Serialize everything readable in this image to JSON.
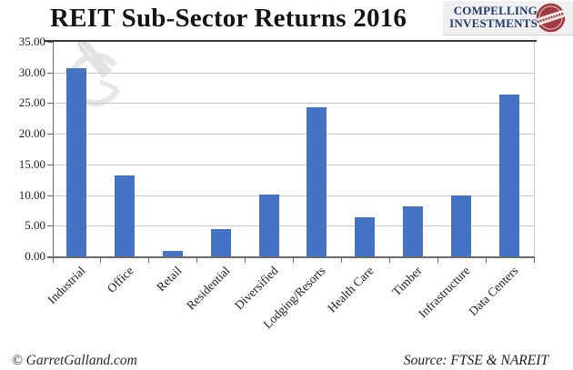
{
  "title": "REIT Sub-Sector Returns 2016",
  "logo": {
    "line1": "COMPELLING",
    "line2": "INVESTMENTS",
    "text_color": "#1e3a6e",
    "seal_color": "#a23b41"
  },
  "footer": {
    "left": "© GarretGalland.com",
    "right": "Source: FTSE & NAREIT"
  },
  "colors": {
    "bar": "#4472C4",
    "gridline": "#c9c9c9",
    "axis": "#6b6b6b",
    "top_rule": "#3a3a3a",
    "watermark": "#e5e5e5",
    "background": "#ffffff"
  },
  "chart_data": {
    "type": "bar",
    "title": "REIT Sub-Sector Returns 2016",
    "categories": [
      "Industrial",
      "Office",
      "Retail",
      "Residential",
      "Diversified",
      "Lodging/Resorts",
      "Health Care",
      "Timber",
      "Infrastructure",
      "Data Centers"
    ],
    "values": [
      30.72,
      13.17,
      0.95,
      4.48,
      10.15,
      24.34,
      6.38,
      8.22,
      9.94,
      26.41
    ],
    "xlabel": "",
    "ylabel": "",
    "ylim": [
      0,
      35
    ],
    "ytick_step": 5,
    "ytick_labels": [
      "0.00",
      "5.00",
      "10.00",
      "15.00",
      "20.00",
      "25.00",
      "30.00",
      "35.00"
    ],
    "grid": true,
    "legend": false,
    "bar_color": "#4472C4",
    "x_tick_label_rotation": 45
  }
}
